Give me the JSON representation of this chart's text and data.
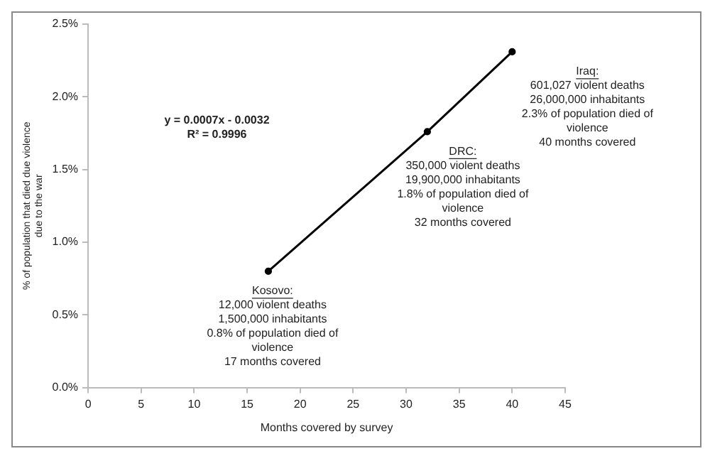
{
  "chart_data": {
    "type": "line",
    "xlabel": "Months covered by survey",
    "ylabel": "% of population that died due violence\ndue to the war",
    "x": [
      17,
      32,
      40
    ],
    "series": [
      {
        "color": "#000000",
        "values": [
          0.8,
          1.76,
          2.31
        ]
      }
    ],
    "marker": "circle",
    "line_style": "solid",
    "grid": false,
    "legend": false,
    "xlim": [
      0,
      45
    ],
    "xticks": [
      0,
      5,
      10,
      15,
      20,
      25,
      30,
      35,
      40,
      45
    ],
    "ylim": [
      0,
      2.5
    ],
    "yticks": [
      {
        "value": 0,
        "label": "0.0%"
      },
      {
        "value": 0.5,
        "label": "0.5%"
      },
      {
        "value": 1,
        "label": "1.0%"
      },
      {
        "value": 1.5,
        "label": "1.5%"
      },
      {
        "value": 2,
        "label": "2.0%"
      },
      {
        "value": 2.5,
        "label": "2.5%"
      }
    ],
    "annotations": [
      "y = 0.0007x - 0.0032\nR² = 0.9996",
      {
        "text": "Kosovo:\n12,000 violent deaths\n1,500,000 inhabitants\n0.8% of population died of\nviolence\n17 months covered",
        "x": 17,
        "y": 0.8
      },
      {
        "text": "DRC:\n350,000 violent deaths\n19,900,000 inhabitants\n1.8% of population died of\nviolence\n32 months covered",
        "x": 32,
        "y": 1.76
      },
      {
        "text": "Iraq:\n601,027 violent deaths\n26,000,000 inhabitants\n2.3% of population died of\nviolence\n40 months covered",
        "x": 40,
        "y": 2.31
      }
    ]
  }
}
